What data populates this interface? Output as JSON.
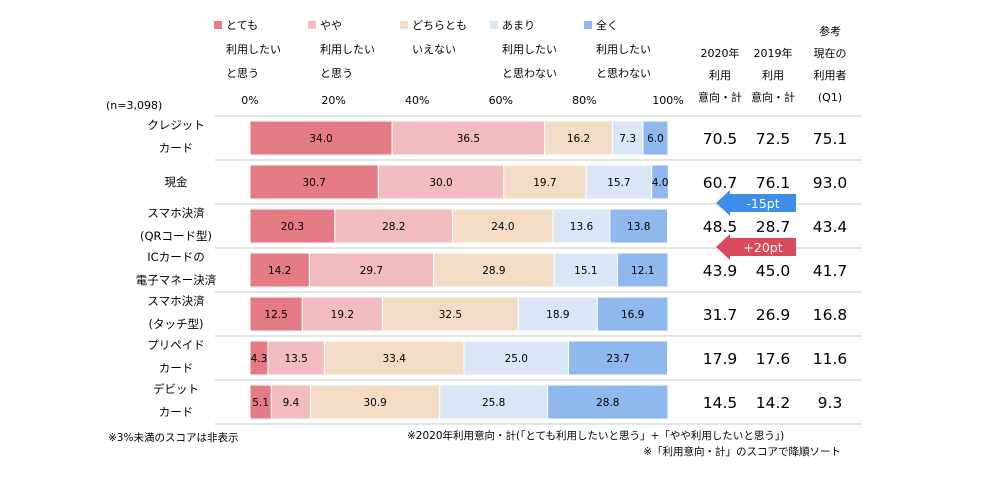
{
  "chart_data": {
    "type": "bar",
    "orientation": "horizontal",
    "stacked": true,
    "sample_note": "(n=3,098)",
    "legend": [
      {
        "lines": [
          "とても",
          "利用したい",
          "と思う"
        ],
        "color": "#e57b84"
      },
      {
        "lines": [
          "やや",
          "利用したい",
          "と思う"
        ],
        "color": "#f2bcc1"
      },
      {
        "lines": [
          "どちらとも",
          "いえない"
        ],
        "color": "#f2dcc6"
      },
      {
        "lines": [
          "あまり",
          "利用したい",
          "と思わない"
        ],
        "color": "#d8e6f6"
      },
      {
        "lines": [
          "全く",
          "利用したい",
          "と思わない"
        ],
        "color": "#8fb8ee"
      }
    ],
    "x_ticks": [
      "0%",
      "20%",
      "40%",
      "60%",
      "80%",
      "100%"
    ],
    "xlim": [
      0,
      100
    ],
    "categories": [
      [
        "クレジット",
        "カード"
      ],
      [
        "現金"
      ],
      [
        "スマホ決済",
        "(QRコード型)"
      ],
      [
        "ICカードの",
        "電子マネー決済"
      ],
      [
        "スマホ決済",
        "(タッチ型)"
      ],
      [
        "プリペイド",
        "カード"
      ],
      [
        "デビット",
        "カード"
      ]
    ],
    "series": [
      {
        "name": "とても利用したいと思う",
        "values": [
          34.0,
          30.7,
          20.3,
          14.2,
          12.5,
          4.3,
          5.1
        ]
      },
      {
        "name": "やや利用したいと思う",
        "values": [
          36.5,
          30.0,
          28.2,
          29.7,
          19.2,
          13.5,
          9.4
        ]
      },
      {
        "name": "どちらともいえない",
        "values": [
          16.2,
          19.7,
          24.0,
          28.9,
          32.5,
          33.4,
          30.9
        ]
      },
      {
        "name": "あまり利用したいと思わない",
        "values": [
          7.3,
          15.7,
          13.6,
          15.1,
          18.9,
          25.0,
          25.8
        ]
      },
      {
        "name": "全く利用したいと思わない",
        "values": [
          6.0,
          4.0,
          13.8,
          12.1,
          16.9,
          23.7,
          28.8
        ]
      }
    ],
    "side_columns": [
      {
        "header": [
          "2020年",
          "利用",
          "意向・計"
        ],
        "values": [
          "70.5",
          "60.7",
          "48.5",
          "43.9",
          "31.7",
          "17.9",
          "14.5"
        ]
      },
      {
        "header": [
          "2019年",
          "利用",
          "意向・計"
        ],
        "values": [
          "72.5",
          "76.1",
          "28.7",
          "45.0",
          "26.9",
          "17.6",
          "14.2"
        ]
      },
      {
        "header": [
          "参考",
          "現在の",
          "利用者",
          "(Q1)"
        ],
        "values": [
          "75.1",
          "93.0",
          "43.4",
          "41.7",
          "16.8",
          "11.6",
          "9.3"
        ]
      }
    ],
    "annotations": [
      {
        "text": "-15pt",
        "color": "#3d8ee8",
        "row": 1
      },
      {
        "text": "+20pt",
        "color": "#d94b5b",
        "row": 2
      }
    ],
    "footnotes": {
      "left": "※3%未満のスコアは非表示",
      "right1": "※2020年利用意向・計(「とても利用したいと思う」+「やや利用したいと思う」)",
      "right2": "※「利用意向・計」のスコアで降順ソート"
    }
  }
}
